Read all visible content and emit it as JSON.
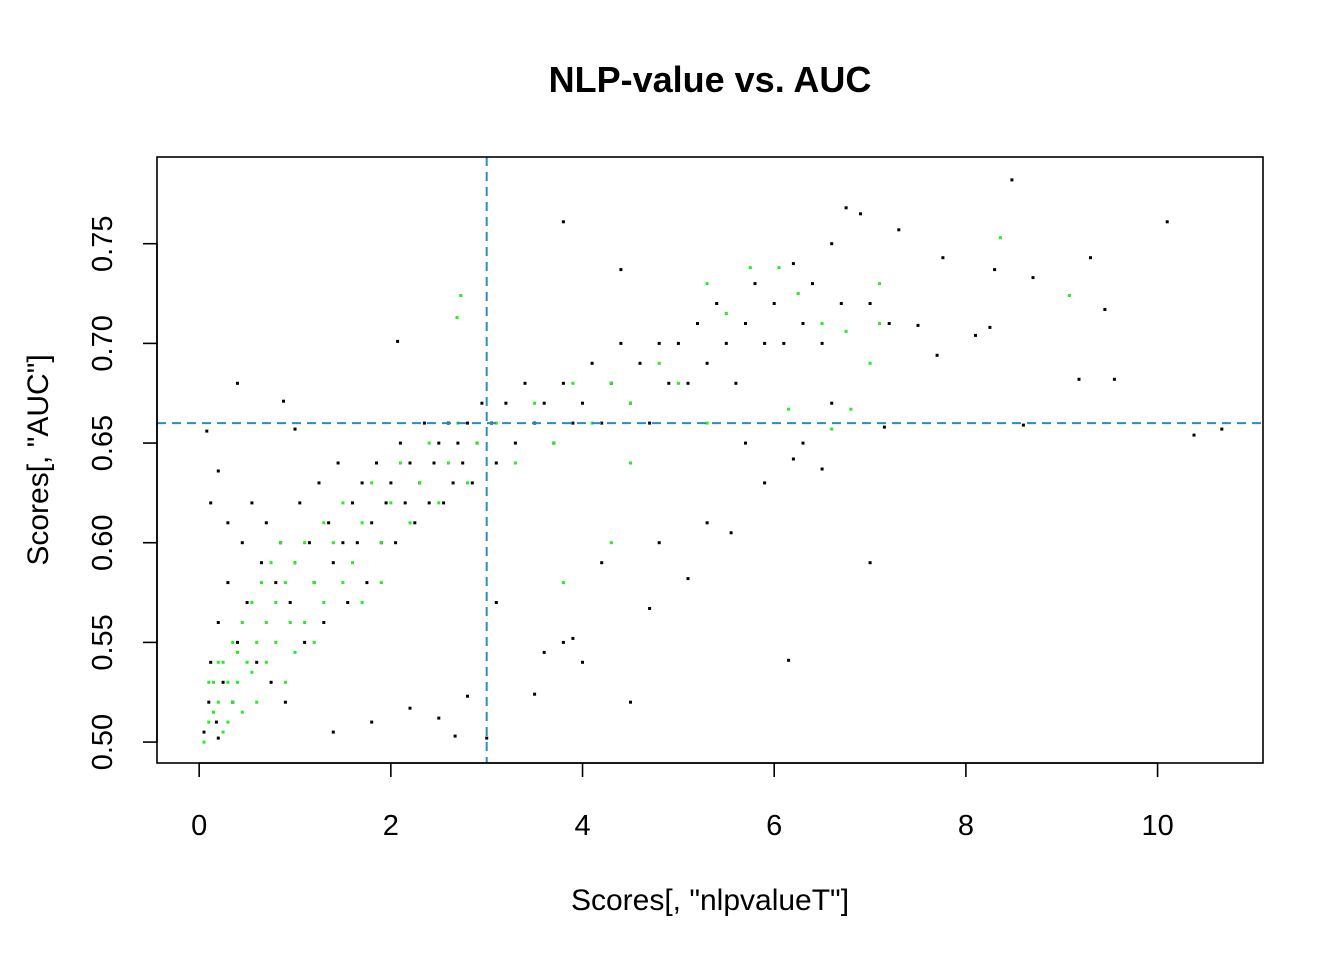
{
  "chart_data": {
    "type": "scatter",
    "title": "NLP-value vs. AUC",
    "xlabel": "Scores[, \"nlpvalueT\"]",
    "ylabel": "Scores[, \"AUC\"]",
    "xlim": [
      -0.44,
      11.1
    ],
    "ylim": [
      0.4895,
      0.7935
    ],
    "x_ticks": [
      0,
      2,
      4,
      6,
      8,
      10
    ],
    "x_tick_labels": [
      "0",
      "2",
      "4",
      "6",
      "8",
      "10"
    ],
    "y_ticks": [
      0.5,
      0.55,
      0.6,
      0.65,
      0.7,
      0.75
    ],
    "y_tick_labels": [
      "0.50",
      "0.55",
      "0.60",
      "0.65",
      "0.70",
      "0.75"
    ],
    "grid": false,
    "legend": "none",
    "reference_lines": [
      {
        "orientation": "vertical",
        "value": 3,
        "style": "dashed",
        "color": "#2b8cbe"
      },
      {
        "orientation": "horizontal",
        "value": 0.66,
        "style": "dashed",
        "color": "#2b8cbe"
      }
    ],
    "series": [
      {
        "color": "#000000",
        "points": [
          [
            0.05,
            0.505
          ],
          [
            0.1,
            0.52
          ],
          [
            0.12,
            0.54
          ],
          [
            0.18,
            0.51
          ],
          [
            0.2,
            0.56
          ],
          [
            0.25,
            0.53
          ],
          [
            0.3,
            0.58
          ],
          [
            0.35,
            0.52
          ],
          [
            0.4,
            0.55
          ],
          [
            0.45,
            0.6
          ],
          [
            0.5,
            0.57
          ],
          [
            0.55,
            0.62
          ],
          [
            0.6,
            0.54
          ],
          [
            0.65,
            0.59
          ],
          [
            0.7,
            0.61
          ],
          [
            0.75,
            0.53
          ],
          [
            0.8,
            0.58
          ],
          [
            0.85,
            0.6
          ],
          [
            0.9,
            0.52
          ],
          [
            0.95,
            0.57
          ],
          [
            1.0,
            0.59
          ],
          [
            1.05,
            0.62
          ],
          [
            1.1,
            0.55
          ],
          [
            1.15,
            0.6
          ],
          [
            1.2,
            0.58
          ],
          [
            1.25,
            0.63
          ],
          [
            1.3,
            0.56
          ],
          [
            1.35,
            0.61
          ],
          [
            1.4,
            0.59
          ],
          [
            1.45,
            0.64
          ],
          [
            1.5,
            0.6
          ],
          [
            1.55,
            0.57
          ],
          [
            1.6,
            0.62
          ],
          [
            1.65,
            0.6
          ],
          [
            1.7,
            0.63
          ],
          [
            1.75,
            0.58
          ],
          [
            1.8,
            0.61
          ],
          [
            1.85,
            0.64
          ],
          [
            1.9,
            0.6
          ],
          [
            1.95,
            0.62
          ],
          [
            2.0,
            0.63
          ],
          [
            2.05,
            0.6
          ],
          [
            2.1,
            0.65
          ],
          [
            2.15,
            0.62
          ],
          [
            2.2,
            0.64
          ],
          [
            2.25,
            0.61
          ],
          [
            2.3,
            0.63
          ],
          [
            2.35,
            0.66
          ],
          [
            2.4,
            0.62
          ],
          [
            2.45,
            0.64
          ],
          [
            2.5,
            0.65
          ],
          [
            2.55,
            0.62
          ],
          [
            2.6,
            0.66
          ],
          [
            2.65,
            0.63
          ],
          [
            2.7,
            0.65
          ],
          [
            2.75,
            0.64
          ],
          [
            2.8,
            0.66
          ],
          [
            2.85,
            0.63
          ],
          [
            2.9,
            0.65
          ],
          [
            2.95,
            0.67
          ],
          [
            3.05,
            0.66
          ],
          [
            3.1,
            0.64
          ],
          [
            3.2,
            0.67
          ],
          [
            3.3,
            0.65
          ],
          [
            3.4,
            0.68
          ],
          [
            3.5,
            0.66
          ],
          [
            3.6,
            0.67
          ],
          [
            3.7,
            0.65
          ],
          [
            3.8,
            0.68
          ],
          [
            3.9,
            0.66
          ],
          [
            4.0,
            0.67
          ],
          [
            4.1,
            0.69
          ],
          [
            4.2,
            0.66
          ],
          [
            4.3,
            0.68
          ],
          [
            4.4,
            0.7
          ],
          [
            4.5,
            0.67
          ],
          [
            4.6,
            0.69
          ],
          [
            4.7,
            0.66
          ],
          [
            4.8,
            0.7
          ],
          [
            4.9,
            0.68
          ],
          [
            5.0,
            0.7
          ],
          [
            5.1,
            0.68
          ],
          [
            5.2,
            0.71
          ],
          [
            5.3,
            0.69
          ],
          [
            5.4,
            0.72
          ],
          [
            5.5,
            0.7
          ],
          [
            5.6,
            0.68
          ],
          [
            5.7,
            0.71
          ],
          [
            5.8,
            0.73
          ],
          [
            5.9,
            0.7
          ],
          [
            6.0,
            0.72
          ],
          [
            6.1,
            0.7
          ],
          [
            6.2,
            0.74
          ],
          [
            6.3,
            0.71
          ],
          [
            6.4,
            0.73
          ],
          [
            6.5,
            0.7
          ],
          [
            6.6,
            0.75
          ],
          [
            6.7,
            0.72
          ],
          [
            6.75,
            0.768
          ],
          [
            6.9,
            0.765
          ],
          [
            7.0,
            0.72
          ],
          [
            7.2,
            0.71
          ],
          [
            7.3,
            0.757
          ],
          [
            7.5,
            0.709
          ],
          [
            7.7,
            0.694
          ],
          [
            7.76,
            0.743
          ],
          [
            8.1,
            0.704
          ],
          [
            8.25,
            0.708
          ],
          [
            8.3,
            0.737
          ],
          [
            8.48,
            0.782
          ],
          [
            8.6,
            0.659
          ],
          [
            8.7,
            0.733
          ],
          [
            9.18,
            0.682
          ],
          [
            9.3,
            0.743
          ],
          [
            9.45,
            0.717
          ],
          [
            9.55,
            0.682
          ],
          [
            10.1,
            0.761
          ],
          [
            10.38,
            0.654
          ],
          [
            10.67,
            0.657
          ],
          [
            0.4,
            0.68
          ],
          [
            0.88,
            0.671
          ],
          [
            1.0,
            0.657
          ],
          [
            2.07,
            0.701
          ],
          [
            3.8,
            0.761
          ],
          [
            4.4,
            0.737
          ],
          [
            0.08,
            0.656
          ],
          [
            0.2,
            0.636
          ],
          [
            0.12,
            0.62
          ],
          [
            0.3,
            0.61
          ],
          [
            2.5,
            0.512
          ],
          [
            2.67,
            0.503
          ],
          [
            2.8,
            0.523
          ],
          [
            3.5,
            0.524
          ],
          [
            3.9,
            0.552
          ],
          [
            3.8,
            0.55
          ],
          [
            4.7,
            0.567
          ],
          [
            5.1,
            0.582
          ],
          [
            5.55,
            0.605
          ],
          [
            5.9,
            0.63
          ],
          [
            6.15,
            0.541
          ],
          [
            6.2,
            0.642
          ],
          [
            6.5,
            0.637
          ],
          [
            7.15,
            0.658
          ],
          [
            7.0,
            0.59
          ],
          [
            4.5,
            0.52
          ],
          [
            3.0,
            0.502
          ],
          [
            1.4,
            0.505
          ],
          [
            2.2,
            0.517
          ],
          [
            1.8,
            0.51
          ],
          [
            3.6,
            0.545
          ],
          [
            3.1,
            0.57
          ],
          [
            4.0,
            0.54
          ],
          [
            4.2,
            0.59
          ],
          [
            4.8,
            0.6
          ],
          [
            5.3,
            0.61
          ],
          [
            5.7,
            0.65
          ],
          [
            6.3,
            0.65
          ],
          [
            6.6,
            0.67
          ],
          [
            0.2,
            0.502
          ]
        ]
      },
      {
        "color": "#22ee22",
        "points": [
          [
            0.05,
            0.5
          ],
          [
            0.1,
            0.51
          ],
          [
            0.15,
            0.53
          ],
          [
            0.2,
            0.52
          ],
          [
            0.25,
            0.54
          ],
          [
            0.3,
            0.51
          ],
          [
            0.35,
            0.55
          ],
          [
            0.4,
            0.53
          ],
          [
            0.45,
            0.56
          ],
          [
            0.5,
            0.54
          ],
          [
            0.55,
            0.57
          ],
          [
            0.6,
            0.55
          ],
          [
            0.65,
            0.58
          ],
          [
            0.7,
            0.56
          ],
          [
            0.75,
            0.59
          ],
          [
            0.8,
            0.57
          ],
          [
            0.85,
            0.6
          ],
          [
            0.9,
            0.58
          ],
          [
            0.95,
            0.56
          ],
          [
            1.0,
            0.59
          ],
          [
            1.1,
            0.6
          ],
          [
            1.2,
            0.58
          ],
          [
            1.3,
            0.61
          ],
          [
            1.4,
            0.6
          ],
          [
            1.5,
            0.62
          ],
          [
            1.6,
            0.59
          ],
          [
            1.7,
            0.61
          ],
          [
            1.8,
            0.63
          ],
          [
            1.9,
            0.6
          ],
          [
            2.0,
            0.62
          ],
          [
            2.1,
            0.64
          ],
          [
            2.2,
            0.61
          ],
          [
            2.3,
            0.63
          ],
          [
            2.4,
            0.65
          ],
          [
            2.5,
            0.62
          ],
          [
            2.6,
            0.64
          ],
          [
            2.7,
            0.66
          ],
          [
            2.8,
            0.63
          ],
          [
            2.9,
            0.65
          ],
          [
            3.1,
            0.66
          ],
          [
            3.3,
            0.64
          ],
          [
            3.5,
            0.67
          ],
          [
            3.7,
            0.65
          ],
          [
            3.9,
            0.68
          ],
          [
            4.1,
            0.66
          ],
          [
            4.3,
            0.68
          ],
          [
            4.5,
            0.67
          ],
          [
            4.8,
            0.69
          ],
          [
            5.0,
            0.68
          ],
          [
            5.3,
            0.73
          ],
          [
            5.5,
            0.715
          ],
          [
            5.75,
            0.738
          ],
          [
            6.05,
            0.738
          ],
          [
            6.25,
            0.725
          ],
          [
            6.5,
            0.71
          ],
          [
            6.75,
            0.706
          ],
          [
            7.0,
            0.69
          ],
          [
            7.1,
            0.73
          ],
          [
            8.36,
            0.753
          ],
          [
            9.08,
            0.724
          ],
          [
            2.73,
            0.724
          ],
          [
            2.69,
            0.713
          ],
          [
            6.15,
            0.667
          ],
          [
            6.6,
            0.657
          ],
          [
            6.8,
            0.667
          ],
          [
            7.1,
            0.71
          ],
          [
            3.8,
            0.58
          ],
          [
            4.3,
            0.6
          ],
          [
            4.5,
            0.64
          ],
          [
            5.3,
            0.66
          ],
          [
            0.15,
            0.515
          ],
          [
            0.25,
            0.505
          ],
          [
            0.3,
            0.53
          ],
          [
            0.35,
            0.52
          ],
          [
            0.4,
            0.545
          ],
          [
            0.2,
            0.54
          ],
          [
            0.1,
            0.53
          ],
          [
            0.45,
            0.515
          ],
          [
            0.55,
            0.535
          ],
          [
            0.6,
            0.52
          ],
          [
            0.7,
            0.54
          ],
          [
            0.8,
            0.55
          ],
          [
            0.9,
            0.53
          ],
          [
            1.0,
            0.545
          ],
          [
            1.1,
            0.56
          ],
          [
            1.2,
            0.55
          ],
          [
            1.3,
            0.57
          ],
          [
            1.5,
            0.58
          ],
          [
            1.7,
            0.57
          ],
          [
            1.9,
            0.58
          ]
        ]
      }
    ]
  }
}
